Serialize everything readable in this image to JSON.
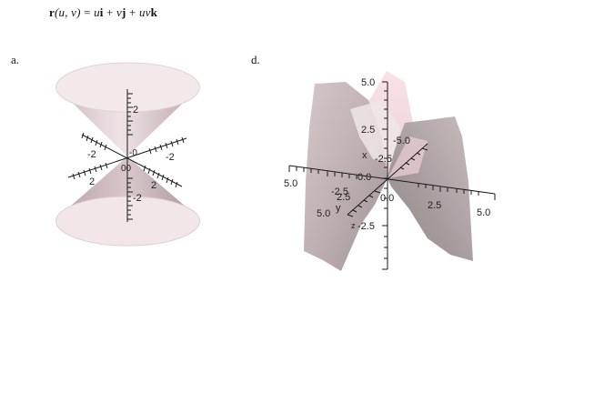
{
  "equation": {
    "r": "r",
    "args": "(u, v)",
    "eq": " = ",
    "u1": "u",
    "i": "i",
    "plus1": " + ",
    "v1": "v",
    "j": "j",
    "plus2": " + ",
    "uv": "uv",
    "k": "k"
  },
  "figures": [
    {
      "label": "a.",
      "tick_labels": {
        "z_top": "2",
        "z_bottom": "-2",
        "left_upper": "-2",
        "right_upper": "-2",
        "left_lower": "2",
        "right_lower": "2",
        "center_top": "-0",
        "center_bottom": "00"
      }
    },
    {
      "label": "d.",
      "tick_labels": {
        "z_5": "5.0",
        "z_2_5": "2.5",
        "z_0": "0.0",
        "z_neg2_5": "-2.5",
        "x_left": "5.0",
        "x_right": "5.0",
        "x_mid_left": "-2.5",
        "x_mid_right": "2.5",
        "x_zero": "0.0",
        "y_neg5": "-5.0",
        "y_neg2_5": "-2.5",
        "y_2_5": "2.5",
        "y_5": "5.0",
        "x_name": "x",
        "y_name": "y",
        "z_name": "z"
      }
    }
  ],
  "colors": {
    "surface_light": "#f6eef0",
    "surface_mid": "#d9c6cb",
    "surface_dark": "#a8959a",
    "axis": "#1a1a1a"
  }
}
